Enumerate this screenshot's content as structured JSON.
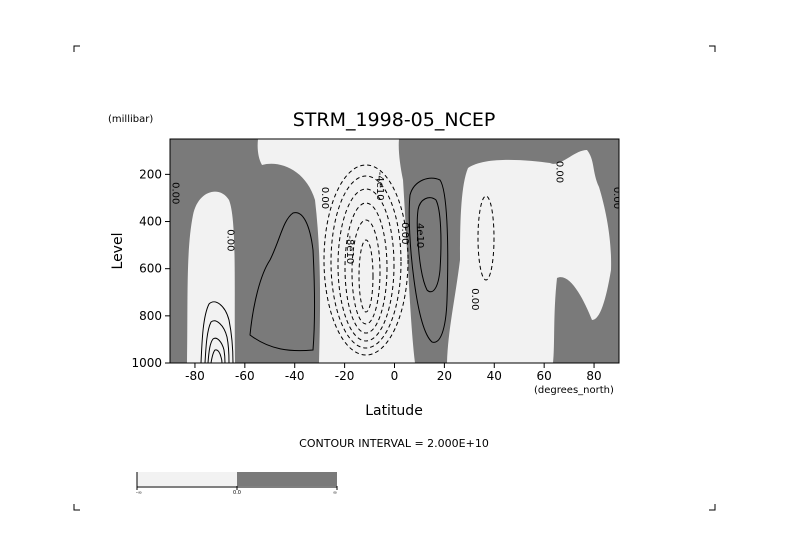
{
  "chart_data": {
    "type": "contour",
    "title": "STRM_1998-05_NCEP",
    "xlabel": "Latitude",
    "ylabel": "Level",
    "xunit": "(degrees_north)",
    "yunit": "(millibar)",
    "xlim": [
      -90,
      90
    ],
    "ylim": [
      1000,
      50
    ],
    "x_ticks": [
      -80,
      -60,
      -40,
      -20,
      0,
      20,
      40,
      60,
      80
    ],
    "y_ticks": [
      200,
      400,
      600,
      800,
      1000
    ],
    "contour_interval_text": "CONTOUR INTERVAL = 2.000E+10",
    "colors": {
      "negative_fill": "#f2f2f2",
      "positive_fill": "#7a7a7a"
    },
    "contour_labels": [
      {
        "text": "0.00",
        "lat": -89,
        "lev": 280
      },
      {
        "text": "0.00",
        "lat": -67,
        "lev": 480
      },
      {
        "text": "0.00",
        "lat": -29,
        "lev": 300
      },
      {
        "text": "-8e10",
        "lat": -19,
        "lev": 520
      },
      {
        "text": "-4e10",
        "lat": -7,
        "lev": 250
      },
      {
        "text": "0.00",
        "lat": 3,
        "lev": 450
      },
      {
        "text": "4e10",
        "lat": 9,
        "lev": 460
      },
      {
        "text": "0.00",
        "lat": 31,
        "lev": 730
      },
      {
        "text": "0.00",
        "lat": 65,
        "lev": 190
      },
      {
        "text": "0.00",
        "lat": 88,
        "lev": 300
      }
    ],
    "colorbar": {
      "labels": [
        "-∞",
        "0.0",
        "∞"
      ],
      "colors": [
        "#f2f2f2",
        "#7a7a7a"
      ]
    }
  }
}
